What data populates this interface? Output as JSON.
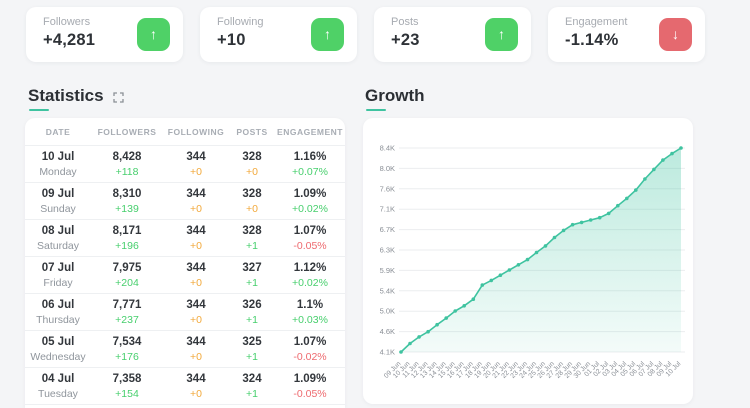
{
  "summary_cards": [
    {
      "label": "Followers",
      "value": "+4,281",
      "trend": "up"
    },
    {
      "label": "Following",
      "value": "+10",
      "trend": "up"
    },
    {
      "label": "Posts",
      "value": "+23",
      "trend": "up"
    },
    {
      "label": "Engagement",
      "value": "-1.14%",
      "trend": "down"
    }
  ],
  "statistics": {
    "title": "Statistics",
    "columns": [
      "DATE",
      "FOLLOWERS",
      "FOLLOWING",
      "POSTS",
      "ENGAGEMENT"
    ],
    "rows": [
      {
        "date": "10 Jul",
        "day": "Monday",
        "cells": [
          {
            "v": "8,428",
            "d": "+118",
            "c": "green"
          },
          {
            "v": "344",
            "d": "+0",
            "c": "orange"
          },
          {
            "v": "328",
            "d": "+0",
            "c": "orange"
          },
          {
            "v": "1.16%",
            "d": "+0.07%",
            "c": "green"
          }
        ]
      },
      {
        "date": "09 Jul",
        "day": "Sunday",
        "cells": [
          {
            "v": "8,310",
            "d": "+139",
            "c": "green"
          },
          {
            "v": "344",
            "d": "+0",
            "c": "orange"
          },
          {
            "v": "328",
            "d": "+0",
            "c": "orange"
          },
          {
            "v": "1.09%",
            "d": "+0.02%",
            "c": "green"
          }
        ]
      },
      {
        "date": "08 Jul",
        "day": "Saturday",
        "cells": [
          {
            "v": "8,171",
            "d": "+196",
            "c": "green"
          },
          {
            "v": "344",
            "d": "+0",
            "c": "orange"
          },
          {
            "v": "328",
            "d": "+1",
            "c": "green"
          },
          {
            "v": "1.07%",
            "d": "-0.05%",
            "c": "red"
          }
        ]
      },
      {
        "date": "07 Jul",
        "day": "Friday",
        "cells": [
          {
            "v": "7,975",
            "d": "+204",
            "c": "green"
          },
          {
            "v": "344",
            "d": "+0",
            "c": "orange"
          },
          {
            "v": "327",
            "d": "+1",
            "c": "green"
          },
          {
            "v": "1.12%",
            "d": "+0.02%",
            "c": "green"
          }
        ]
      },
      {
        "date": "06 Jul",
        "day": "Thursday",
        "cells": [
          {
            "v": "7,771",
            "d": "+237",
            "c": "green"
          },
          {
            "v": "344",
            "d": "+0",
            "c": "orange"
          },
          {
            "v": "326",
            "d": "+1",
            "c": "green"
          },
          {
            "v": "1.1%",
            "d": "+0.03%",
            "c": "green"
          }
        ]
      },
      {
        "date": "05 Jul",
        "day": "Wednesday",
        "cells": [
          {
            "v": "7,534",
            "d": "+176",
            "c": "green"
          },
          {
            "v": "344",
            "d": "+0",
            "c": "orange"
          },
          {
            "v": "325",
            "d": "+1",
            "c": "green"
          },
          {
            "v": "1.07%",
            "d": "-0.02%",
            "c": "red"
          }
        ]
      },
      {
        "date": "04 Jul",
        "day": "Tuesday",
        "cells": [
          {
            "v": "7,358",
            "d": "+154",
            "c": "green"
          },
          {
            "v": "344",
            "d": "+0",
            "c": "orange"
          },
          {
            "v": "324",
            "d": "+1",
            "c": "green"
          },
          {
            "v": "1.09%",
            "d": "-0.05%",
            "c": "red"
          }
        ]
      }
    ]
  },
  "growth": {
    "title": "Growth"
  },
  "chart_data": {
    "type": "area",
    "title": "Growth",
    "series": [
      {
        "name": "Followers",
        "values": [
          4100,
          4280,
          4420,
          4530,
          4680,
          4820,
          4970,
          5080,
          5220,
          5520,
          5620,
          5730,
          5840,
          5950,
          6060,
          6210,
          6350,
          6530,
          6680,
          6800,
          6850,
          6900,
          6950,
          7040,
          7204,
          7358,
          7534,
          7771,
          7975,
          8171,
          8310,
          8428
        ]
      }
    ],
    "x": [
      "09 Jun",
      "10 Jun",
      "11 Jun",
      "12 Jun",
      "13 Jun",
      "14 Jun",
      "15 Jun",
      "16 Jun",
      "17 Jun",
      "18 Jun",
      "19 Jun",
      "20 Jun",
      "21 Jun",
      "22 Jun",
      "23 Jun",
      "24 Jun",
      "25 Jun",
      "26 Jun",
      "27 Jun",
      "28 Jun",
      "29 Jun",
      "30 Jun",
      "01 Jul",
      "02 Jul",
      "03 Jul",
      "04 Jul",
      "05 Jul",
      "06 Jul",
      "07 Jul",
      "08 Jul",
      "09 Jul",
      "10 Jul"
    ],
    "ylim": [
      4100,
      8428
    ],
    "yticks": [
      "4.1K",
      "4.6K",
      "5.0K",
      "5.4K",
      "5.9K",
      "6.3K",
      "6.7K",
      "7.1K",
      "7.6K",
      "8.0K",
      "8.4K"
    ],
    "grid": true,
    "legend": false,
    "line_color": "#3fc3a0",
    "fill_color": "#3fc3a0"
  },
  "colors": {
    "green": "#47cf6d",
    "orange": "#f2a93b",
    "red": "#ee6a6f",
    "gray": "#8f959c",
    "accent_teal": "#3fc3a0",
    "btn_green": "#4fd167",
    "btn_red": "#e5696f"
  }
}
